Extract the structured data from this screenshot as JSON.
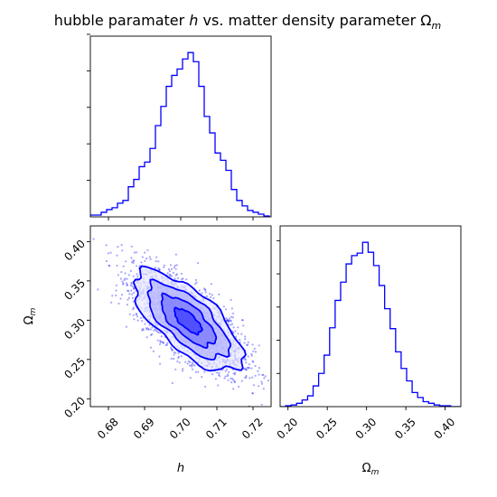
{
  "title": "hubble paramater h vs. matter density parameter Ω_m",
  "title_parts": {
    "pre": "hubble paramater ",
    "h": "h",
    "mid": " vs. matter density parameter Ω",
    "sub": "m"
  },
  "colors": {
    "line": "#0000ff",
    "axis": "#000000",
    "background": "#ffffff"
  },
  "chart_data": [
    {
      "type": "histogram",
      "panel": "top-left",
      "variable": "h",
      "xlim": [
        0.675,
        0.725
      ],
      "bin_edges": [
        0.675,
        0.6765,
        0.678,
        0.6795,
        0.681,
        0.6825,
        0.684,
        0.6855,
        0.687,
        0.6885,
        0.69,
        0.6915,
        0.693,
        0.6945,
        0.696,
        0.6975,
        0.699,
        0.7005,
        0.702,
        0.7035,
        0.705,
        0.7065,
        0.708,
        0.7095,
        0.711,
        0.7125,
        0.714,
        0.7155,
        0.717,
        0.7185,
        0.72,
        0.7215,
        0.723,
        0.7245
      ],
      "counts": [
        2,
        2,
        5,
        8,
        10,
        15,
        18,
        33,
        41,
        55,
        60,
        75,
        100,
        121,
        143,
        155,
        162,
        173,
        180,
        170,
        143,
        110,
        92,
        70,
        62,
        51,
        30,
        18,
        12,
        7,
        5,
        3,
        1
      ],
      "y_ticks_shown": true,
      "y_tick_labels": false
    },
    {
      "type": "scatter_contour",
      "panel": "bottom-left",
      "x_variable": "h",
      "y_variable": "Ω_m",
      "xlim": [
        0.675,
        0.725
      ],
      "ylim": [
        0.19,
        0.42
      ],
      "x_ticks": [
        "0.68",
        "0.69",
        "0.70",
        "0.71",
        "0.72"
      ],
      "y_ticks": [
        "0.20",
        "0.25",
        "0.30",
        "0.35",
        "0.40"
      ],
      "xlabel": "h",
      "ylabel": "Ω_m",
      "center": {
        "h": 0.702,
        "omega_m": 0.299
      },
      "correlation": -0.7,
      "contour_levels_sigma": [
        0.5,
        1.0,
        1.5,
        2.0
      ]
    },
    {
      "type": "histogram",
      "panel": "bottom-right",
      "variable": "Ω_m",
      "xlim": [
        0.19,
        0.42
      ],
      "x_ticks": [
        "0.20",
        "0.25",
        "0.30",
        "0.35",
        "0.40"
      ],
      "xlabel": "Ω_m",
      "bin_edges": [
        0.19,
        0.197,
        0.204,
        0.211,
        0.218,
        0.225,
        0.232,
        0.239,
        0.246,
        0.253,
        0.26,
        0.267,
        0.274,
        0.281,
        0.288,
        0.295,
        0.302,
        0.309,
        0.316,
        0.323,
        0.33,
        0.337,
        0.344,
        0.351,
        0.358,
        0.365,
        0.372,
        0.379,
        0.386,
        0.393,
        0.4,
        0.407,
        0.414,
        0.421
      ],
      "counts": [
        0,
        1,
        2,
        4,
        8,
        13,
        25,
        40,
        62,
        95,
        128,
        150,
        172,
        182,
        185,
        198,
        186,
        170,
        146,
        118,
        94,
        66,
        46,
        31,
        17,
        11,
        6,
        4,
        2,
        1,
        1,
        0,
        0
      ]
    }
  ]
}
